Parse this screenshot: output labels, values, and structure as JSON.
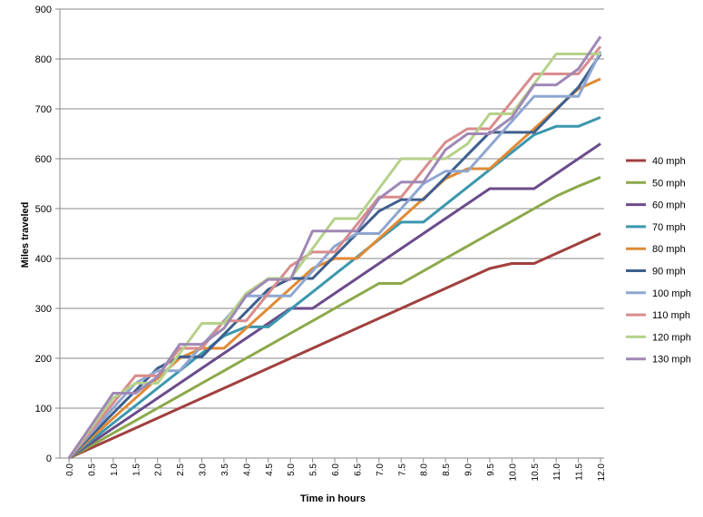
{
  "chart_data": {
    "type": "line",
    "xlabel": "Time in hours",
    "ylabel": "Miles traveled",
    "xlim": [
      0,
      12
    ],
    "ylim": [
      0,
      900
    ],
    "yticks": [
      0,
      100,
      200,
      300,
      400,
      500,
      600,
      700,
      800,
      900
    ],
    "x": [
      "0.0",
      "0.5",
      "1.0",
      "1.5",
      "2.0",
      "2.5",
      "3.0",
      "3.5",
      "4.0",
      "4.5",
      "5.0",
      "5.5",
      "6.0",
      "6.5",
      "7.0",
      "7.5",
      "8.0",
      "8.5",
      "9.0",
      "9.5",
      "10.0",
      "10.5",
      "11.0",
      "11.5",
      "12.0"
    ],
    "grid": "horizontal",
    "legend_position": "right",
    "series": [
      {
        "name": "40 mph",
        "color": "#A0403E",
        "values": [
          0,
          20,
          40,
          60,
          80,
          100,
          120,
          140,
          160,
          180,
          200,
          220,
          240,
          260,
          280,
          300,
          320,
          340,
          360,
          380,
          390,
          390,
          410,
          430,
          450
        ]
      },
      {
        "name": "50 mph",
        "color": "#8CA94A",
        "values": [
          0,
          25,
          50,
          75,
          100,
          125,
          150,
          175,
          200,
          225,
          250,
          275,
          300,
          325,
          350,
          350,
          375,
          400,
          425,
          450,
          475,
          500,
          525,
          545,
          563
        ]
      },
      {
        "name": "60 mph",
        "color": "#6B4C8B",
        "values": [
          0,
          30,
          60,
          90,
          120,
          150,
          180,
          210,
          240,
          270,
          300,
          300,
          330,
          360,
          390,
          420,
          450,
          480,
          510,
          540,
          540,
          540,
          570,
          600,
          630
        ]
      },
      {
        "name": "70 mph",
        "color": "#3B97AE",
        "values": [
          0,
          35,
          70,
          105,
          140,
          175,
          210,
          245,
          263,
          263,
          298,
          333,
          368,
          403,
          438,
          473,
          473,
          508,
          543,
          578,
          613,
          648,
          665,
          665,
          683
        ]
      },
      {
        "name": "80 mph",
        "color": "#E08A36",
        "values": [
          0,
          40,
          80,
          120,
          160,
          200,
          220,
          220,
          260,
          300,
          340,
          380,
          400,
          400,
          440,
          480,
          520,
          560,
          580,
          580,
          620,
          660,
          700,
          740,
          760
        ]
      },
      {
        "name": "90 mph",
        "color": "#3E5F8E",
        "values": [
          0,
          45,
          90,
          135,
          180,
          203,
          203,
          248,
          293,
          338,
          360,
          360,
          405,
          450,
          495,
          518,
          518,
          563,
          608,
          653,
          653,
          653,
          698,
          743,
          810
        ]
      },
      {
        "name": "100 mph",
        "color": "#8FA6D0",
        "values": [
          0,
          50,
          100,
          150,
          175,
          175,
          225,
          275,
          325,
          325,
          325,
          375,
          425,
          450,
          450,
          500,
          550,
          575,
          575,
          625,
          675,
          725,
          725,
          725,
          815
        ]
      },
      {
        "name": "110 mph",
        "color": "#D98C8C",
        "values": [
          0,
          55,
          110,
          165,
          165,
          220,
          220,
          275,
          275,
          330,
          385,
          413,
          413,
          468,
          523,
          523,
          578,
          633,
          660,
          660,
          715,
          770,
          770,
          770,
          825
        ]
      },
      {
        "name": "120 mph",
        "color": "#B5D18A",
        "values": [
          0,
          60,
          120,
          150,
          150,
          210,
          270,
          270,
          330,
          360,
          360,
          420,
          480,
          480,
          540,
          600,
          600,
          600,
          630,
          690,
          690,
          750,
          810,
          810,
          810
        ]
      },
      {
        "name": "130 mph",
        "color": "#9F88B5",
        "values": [
          0,
          65,
          130,
          130,
          163,
          228,
          228,
          260,
          325,
          358,
          358,
          455,
          455,
          455,
          520,
          553,
          553,
          618,
          650,
          650,
          683,
          748,
          748,
          780,
          845
        ]
      }
    ]
  }
}
